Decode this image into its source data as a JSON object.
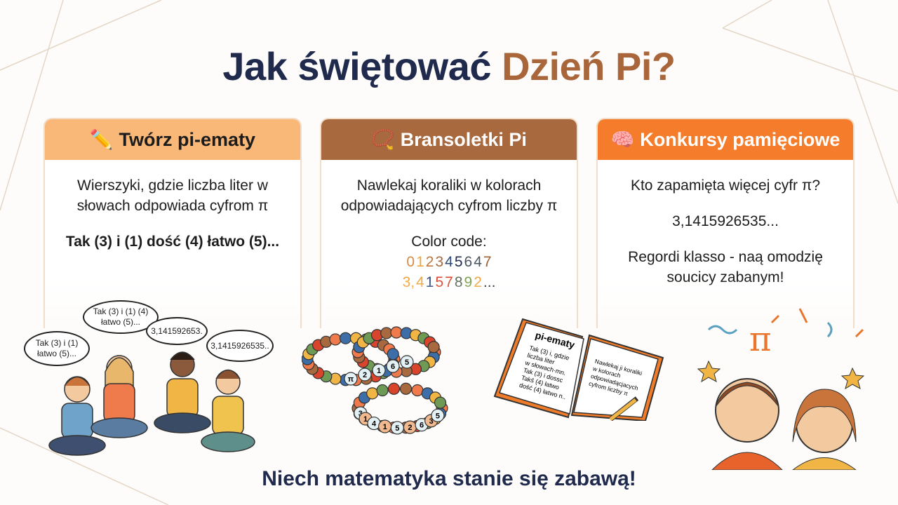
{
  "title": {
    "main": "Jak świętować ",
    "accent": "Dzień Pi?"
  },
  "colors": {
    "navy": "#1f2a4d",
    "brown": "#a8663a",
    "card1": "#f9b877",
    "card2": "#a8693f",
    "card3": "#f47c2a"
  },
  "cards": [
    {
      "icon": "pencil-icon",
      "icon_glyph": "✏️",
      "title": "Twórz pi-ematy",
      "text1": "Wierszyki, gdzie liczba liter w",
      "text2": "słowach odpowiada cyfrom π",
      "example": "Tak (3) i (1) dość (4) łatwo (5)..."
    },
    {
      "icon": "bracelet-icon",
      "icon_glyph": "📿",
      "title": "Bransoletki Pi",
      "text1": "Nawlekaj koraliki w kolorach",
      "text2": "odpowiadających cyfrom liczby π",
      "code_label": "Color code:",
      "row1": [
        {
          "d": "0",
          "c": "#d98b45"
        },
        {
          "d": "1",
          "c": "#f0a53c"
        },
        {
          "d": "2",
          "c": "#c0773f"
        },
        {
          "d": "3",
          "c": "#a8693f"
        },
        {
          "d": "4",
          "c": "#2d4a7a"
        },
        {
          "d": "5",
          "c": "#1f2a4d"
        },
        {
          "d": "6",
          "c": "#4a5560"
        },
        {
          "d": "4",
          "c": "#4a5560"
        },
        {
          "d": "7",
          "c": "#9a6038"
        }
      ],
      "row2": [
        {
          "d": "3,",
          "c": "#f0a53c"
        },
        {
          "d": "4",
          "c": "#f0a53c"
        },
        {
          "d": "1",
          "c": "#2d4a7a"
        },
        {
          "d": "5",
          "c": "#d9452c"
        },
        {
          "d": "7",
          "c": "#d9452c"
        },
        {
          "d": "8",
          "c": "#5a6b55"
        },
        {
          "d": "9",
          "c": "#7aa04a"
        },
        {
          "d": "2",
          "c": "#f0a53c"
        },
        {
          "d": "...",
          "c": "#222222"
        }
      ]
    },
    {
      "icon": "brain-icon",
      "icon_glyph": "🧠",
      "title": "Konkursy pamięciowe",
      "text1": "Kto zapamięta więcej cyfr π?",
      "digits": "3,1415926535...",
      "text2": "Regordi klasso - naą omodzię",
      "text3": "soucicy zabanym!"
    }
  ],
  "bubbles": [
    "Tak (3) i (1)\nłatwo (5)...",
    "Tak (3) i (1) (4)\nłatwo (5)...",
    "3,141592653.",
    "3,1415926535.."
  ],
  "bracelet_beads": {
    "top": [
      "π",
      "2",
      "1",
      "6",
      "5"
    ],
    "bottom": [
      "3",
      "1",
      "4",
      "1",
      "5",
      "2",
      "6",
      "3",
      "5"
    ]
  },
  "notebook": {
    "title": "pi-ematy",
    "left": [
      "Tak (3) i, gdzie",
      "liczba liter",
      "w słowach·mn.",
      "Tak (3) i dossc",
      "Takś (4) łatwo",
      "dość (4) łatwo n.."
    ],
    "right": [
      "Nawlekaj ji koraliki",
      "w kolorach",
      "odpowiadącjacych",
      "cyfrom liczby π"
    ]
  },
  "footer": "Niech matematyka stanie się zabawą!"
}
